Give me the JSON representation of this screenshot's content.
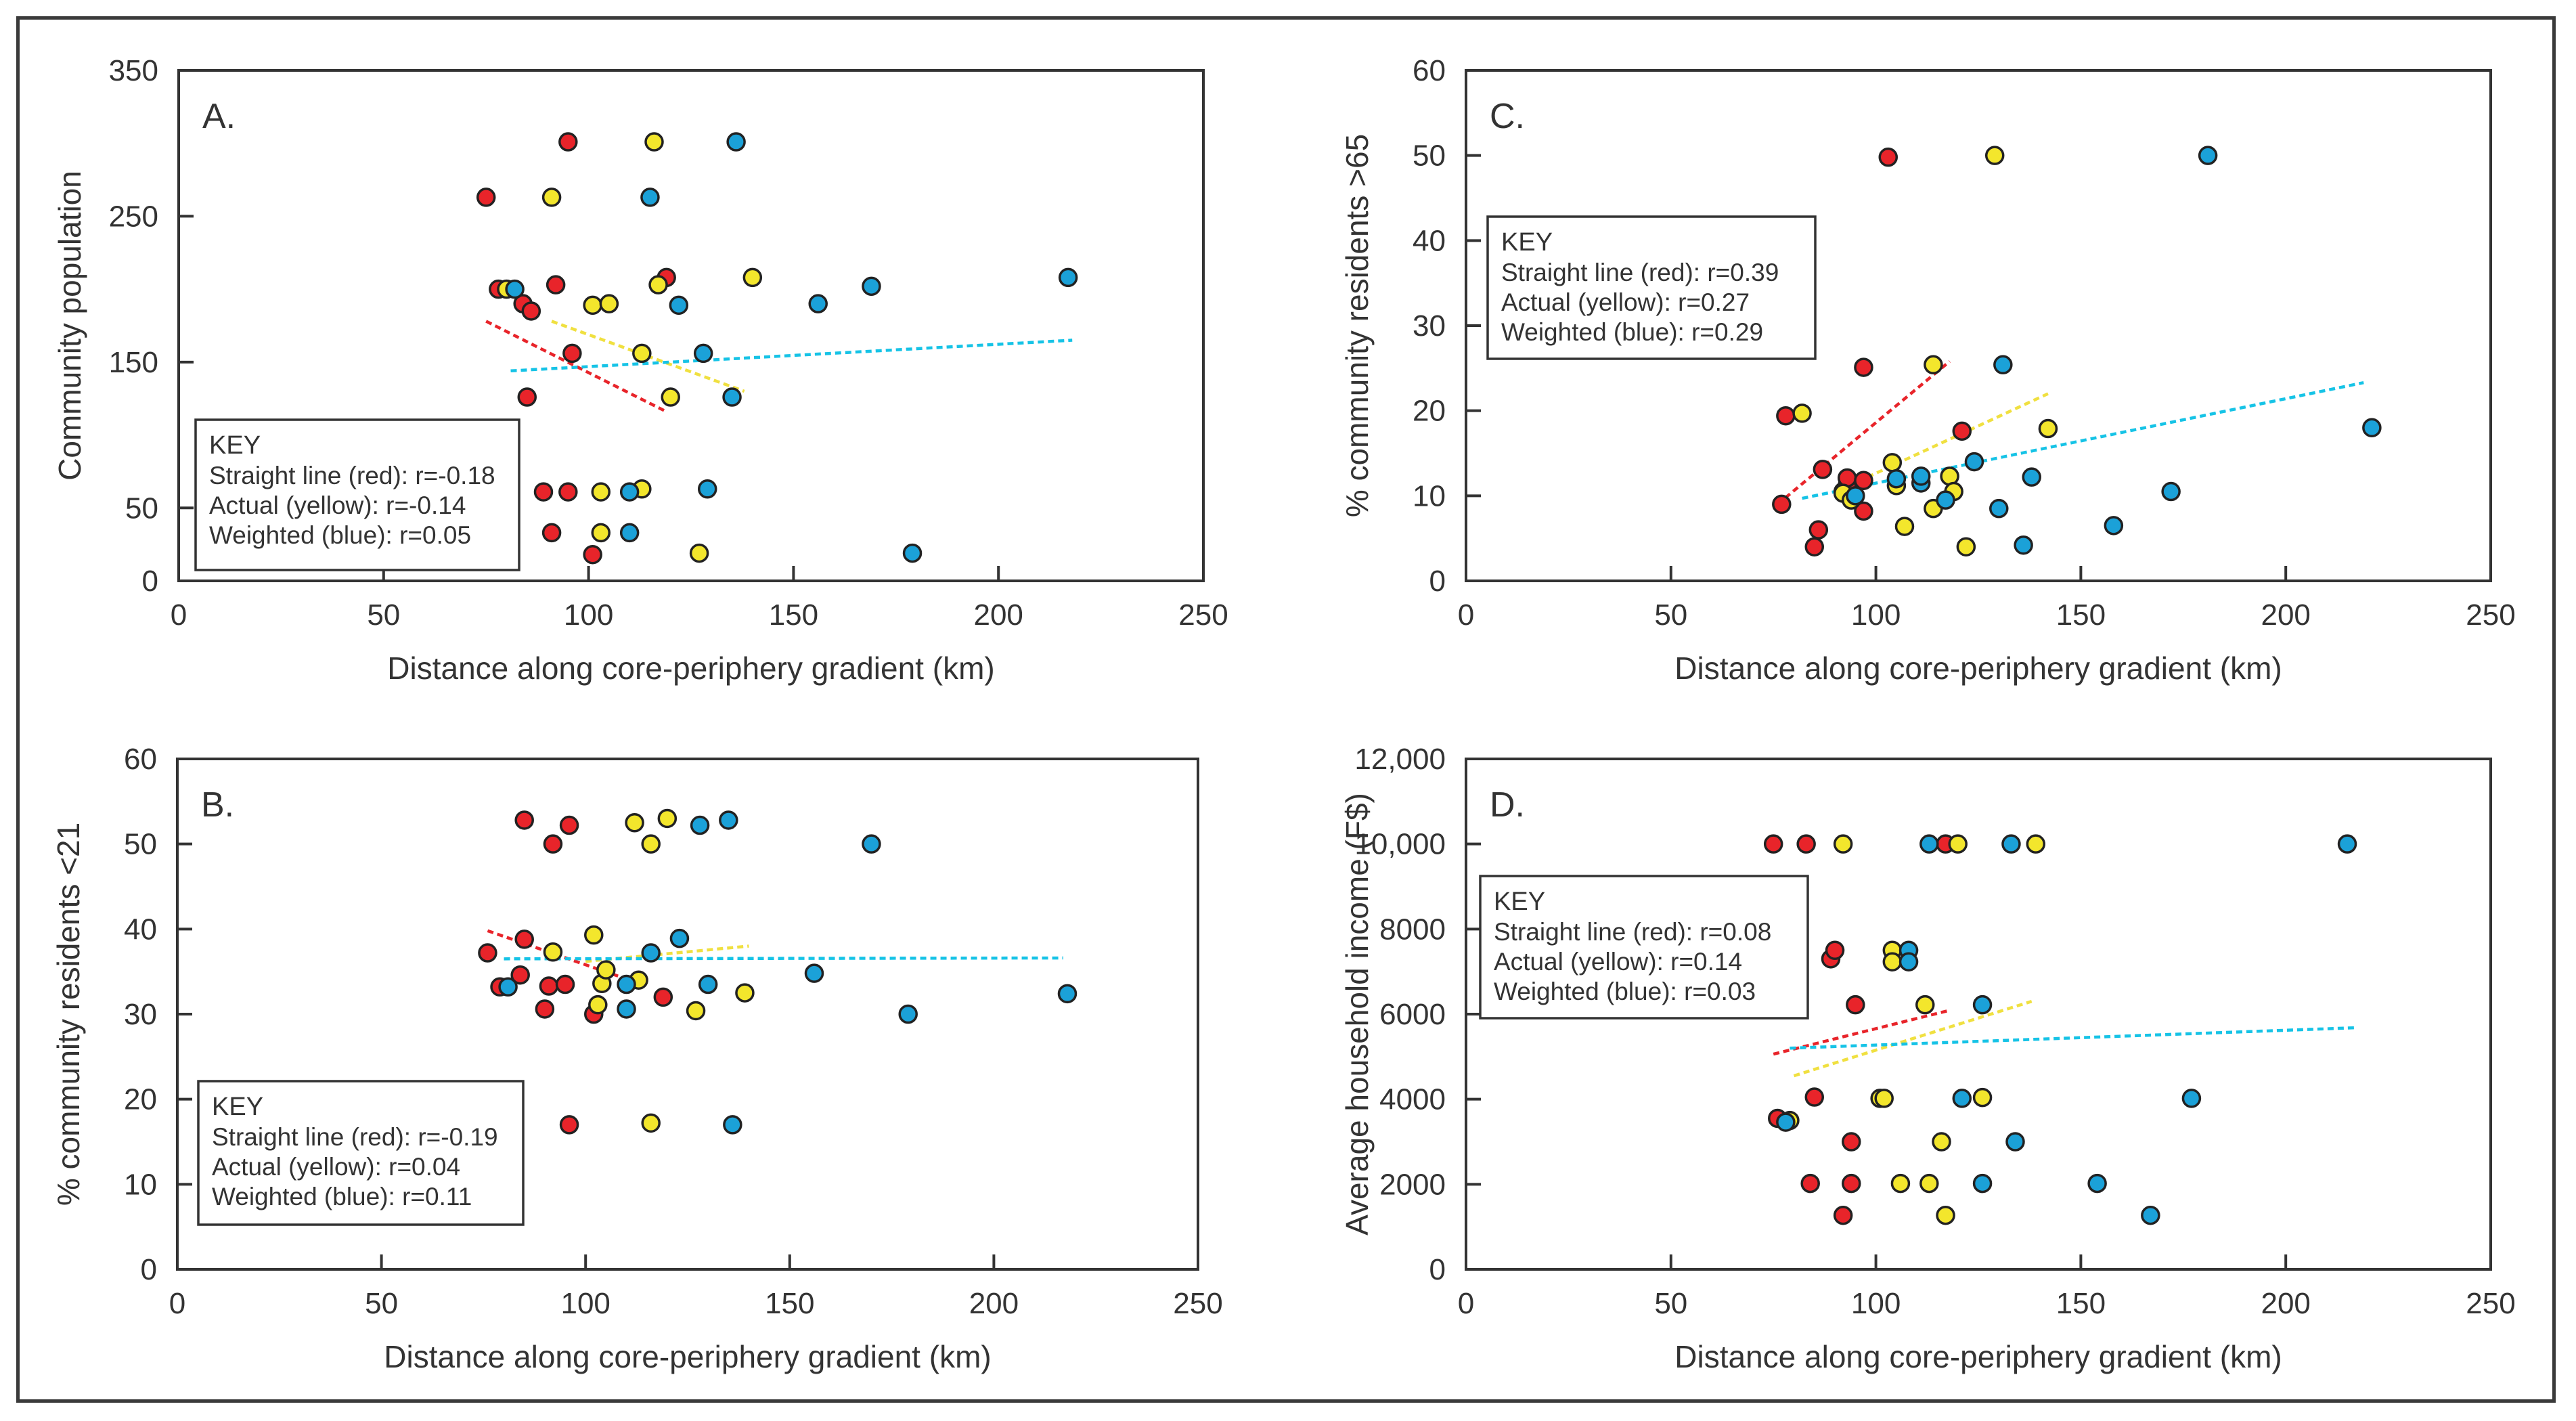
{
  "colors": {
    "red": "#e8242a",
    "yellow": "#f3e62c",
    "blue": "#1ba1d8",
    "red_line": "#e8242a",
    "yellow_line": "#f0e040",
    "blue_line": "#16c3e6",
    "axis": "#333333"
  },
  "key_title": "KEY",
  "chart_data": [
    {
      "panel": "A.",
      "type": "scatter",
      "xlabel": "Distance along core-periphery gradient (km)",
      "ylabel": "Community population",
      "xlim": [
        0,
        250
      ],
      "ylim": [
        0,
        350
      ],
      "xticks": [
        0,
        50,
        100,
        150,
        200,
        250
      ],
      "yticks": [
        0,
        50,
        150,
        250,
        350
      ],
      "key": [
        "Straight line (red): r=-0.18",
        "Actual (yellow): r=-0.14",
        "Weighted (blue): r=0.05"
      ],
      "series": [
        {
          "name": "Straight line",
          "color": "red",
          "points": [
            [
              75,
              263
            ],
            [
              78,
              200
            ],
            [
              84,
              190
            ],
            [
              85,
              126
            ],
            [
              86,
              185
            ],
            [
              89,
              61
            ],
            [
              91,
              33
            ],
            [
              92,
              203
            ],
            [
              95,
              301
            ],
            [
              95,
              61
            ],
            [
              96,
              156
            ],
            [
              101,
              18
            ],
            [
              119,
              208
            ]
          ],
          "trend": [
            [
              75,
              178
            ],
            [
              119,
              116
            ]
          ]
        },
        {
          "name": "Actual",
          "color": "yellow",
          "points": [
            [
              80,
              200
            ],
            [
              91,
              263
            ],
            [
              101,
              189
            ],
            [
              103,
              61
            ],
            [
              103,
              33
            ],
            [
              105,
              190
            ],
            [
              113,
              156
            ],
            [
              113,
              63
            ],
            [
              116,
              301
            ],
            [
              117,
              203
            ],
            [
              120,
              126
            ],
            [
              127,
              19
            ],
            [
              140,
              208
            ]
          ],
          "trend": [
            [
              91,
              178
            ],
            [
              138,
              130
            ]
          ]
        },
        {
          "name": "Weighted",
          "color": "blue",
          "points": [
            [
              82,
              200
            ],
            [
              110,
              61
            ],
            [
              110,
              33
            ],
            [
              115,
              263
            ],
            [
              122,
              189
            ],
            [
              128,
              156
            ],
            [
              129,
              63
            ],
            [
              135,
              126
            ],
            [
              136,
              301
            ],
            [
              156,
              190
            ],
            [
              169,
              202
            ],
            [
              179,
              19
            ],
            [
              217,
              208
            ]
          ],
          "trend": [
            [
              81,
              144
            ],
            [
              218,
              165
            ]
          ]
        }
      ]
    },
    {
      "panel": "B.",
      "type": "scatter",
      "xlabel": "Distance along core-periphery gradient (km)",
      "ylabel": "% community residents <21",
      "xlim": [
        0,
        250
      ],
      "ylim": [
        0,
        60
      ],
      "xticks": [
        0,
        50,
        100,
        150,
        200,
        250
      ],
      "yticks": [
        0,
        10,
        20,
        30,
        40,
        50,
        60
      ],
      "key": [
        "Straight line (red): r=-0.19",
        "Actual (yellow): r=0.04",
        "Weighted (blue): r=0.11"
      ],
      "series": [
        {
          "name": "Straight line",
          "color": "red",
          "points": [
            [
              76,
              37.2
            ],
            [
              79,
              33.2
            ],
            [
              84,
              34.6
            ],
            [
              85,
              38.8
            ],
            [
              85,
              52.8
            ],
            [
              90,
              30.6
            ],
            [
              91,
              33.3
            ],
            [
              92,
              50
            ],
            [
              95,
              33.5
            ],
            [
              96,
              52.2
            ],
            [
              96,
              17
            ],
            [
              102,
              30
            ],
            [
              119,
              32
            ]
          ],
          "trend": [
            [
              76,
              39.8
            ],
            [
              112,
              33.8
            ]
          ]
        },
        {
          "name": "Actual",
          "color": "yellow",
          "points": [
            [
              92,
              37.3
            ],
            [
              102,
              39.3
            ],
            [
              103,
              31.1
            ],
            [
              104,
              33.6
            ],
            [
              105,
              35.2
            ],
            [
              112,
              52.5
            ],
            [
              113,
              34
            ],
            [
              116,
              50
            ],
            [
              116,
              17.2
            ],
            [
              120,
              53
            ],
            [
              127,
              30.4
            ],
            [
              139,
              32.5
            ]
          ],
          "trend": [
            [
              100,
              36.2
            ],
            [
              140,
              38
            ]
          ]
        },
        {
          "name": "Weighted",
          "color": "blue",
          "points": [
            [
              81,
              33.2
            ],
            [
              110,
              33.5
            ],
            [
              110,
              30.6
            ],
            [
              116,
              37.2
            ],
            [
              123,
              38.9
            ],
            [
              128,
              52.2
            ],
            [
              130,
              33.5
            ],
            [
              135,
              52.8
            ],
            [
              136,
              17
            ],
            [
              156,
              34.8
            ],
            [
              170,
              50
            ],
            [
              179,
              30
            ],
            [
              218,
              32.4
            ]
          ],
          "trend": [
            [
              80,
              36.5
            ],
            [
              217,
              36.6
            ]
          ]
        }
      ]
    },
    {
      "panel": "C.",
      "type": "scatter",
      "xlabel": "Distance along core-periphery gradient (km)",
      "ylabel": "% community residents >65",
      "xlim": [
        0,
        250
      ],
      "ylim": [
        0,
        60
      ],
      "xticks": [
        0,
        50,
        100,
        150,
        200,
        250
      ],
      "yticks": [
        0,
        10,
        20,
        30,
        40,
        50,
        60
      ],
      "key": [
        "Straight line (red): r=0.39",
        "Actual (yellow): r=0.27",
        "Weighted (blue): r=0.29"
      ],
      "series": [
        {
          "name": "Straight line",
          "color": "red",
          "points": [
            [
              77,
              9
            ],
            [
              78,
              19.4
            ],
            [
              85,
              4
            ],
            [
              86,
              6
            ],
            [
              87,
              13.1
            ],
            [
              92,
              10.5
            ],
            [
              93,
              11.2
            ],
            [
              93,
              12.1
            ],
            [
              97,
              8.2
            ],
            [
              97,
              11.8
            ],
            [
              97,
              25.1
            ],
            [
              103,
              49.8
            ],
            [
              121,
              17.6
            ]
          ],
          "trend": [
            [
              76,
              9
            ],
            [
              118,
              25.8
            ]
          ]
        },
        {
          "name": "Actual",
          "color": "yellow",
          "points": [
            [
              82,
              19.7
            ],
            [
              92,
              10.3
            ],
            [
              94,
              9.5
            ],
            [
              104,
              13.9
            ],
            [
              105,
              11.2
            ],
            [
              107,
              6.4
            ],
            [
              114,
              8.5
            ],
            [
              114,
              25.4
            ],
            [
              118,
              12.3
            ],
            [
              119,
              10.5
            ],
            [
              122,
              4
            ],
            [
              129,
              50
            ],
            [
              142,
              17.9
            ]
          ],
          "trend": [
            [
              98,
              12.2
            ],
            [
              142,
              22
            ]
          ]
        },
        {
          "name": "Weighted",
          "color": "blue",
          "points": [
            [
              95,
              10
            ],
            [
              105,
              12
            ],
            [
              111,
              11.5
            ],
            [
              111,
              12.3
            ],
            [
              117,
              9.5
            ],
            [
              124,
              14
            ],
            [
              130,
              8.5
            ],
            [
              131,
              25.4
            ],
            [
              136,
              4.2
            ],
            [
              138,
              12.2
            ],
            [
              158,
              6.5
            ],
            [
              172,
              10.5
            ],
            [
              181,
              50
            ],
            [
              221,
              18
            ]
          ],
          "trend": [
            [
              82,
              9.7
            ],
            [
              219,
              23.3
            ]
          ]
        }
      ]
    },
    {
      "panel": "D.",
      "type": "scatter",
      "xlabel": "Distance along core-periphery gradient (km)",
      "ylabel": "Average household income (F$)",
      "xlim": [
        0,
        250
      ],
      "ylim": [
        0,
        12000
      ],
      "xticks": [
        0,
        50,
        100,
        150,
        200,
        250
      ],
      "yticks": [
        0,
        2000,
        4000,
        6000,
        8000,
        10000,
        12000
      ],
      "ytick_labels": [
        "0",
        "2000",
        "4000",
        "6000",
        "8000",
        "10,000",
        "12,000"
      ],
      "key": [
        "Straight line (red): r=0.08",
        "Actual (yellow): r=0.14",
        "Weighted (blue): r=0.03"
      ],
      "series": [
        {
          "name": "Straight line",
          "color": "red",
          "points": [
            [
              75,
              10000
            ],
            [
              76,
              3550
            ],
            [
              83,
              10000
            ],
            [
              84,
              2020
            ],
            [
              85,
              4050
            ],
            [
              89,
              7300
            ],
            [
              90,
              7500
            ],
            [
              92,
              1270
            ],
            [
              94,
              3000
            ],
            [
              94,
              2020
            ],
            [
              95,
              6220
            ],
            [
              117,
              10000
            ]
          ],
          "trend": [
            [
              75,
              5060
            ],
            [
              118,
              6090
            ]
          ]
        },
        {
          "name": "Actual",
          "color": "yellow",
          "points": [
            [
              79,
              3500
            ],
            [
              92,
              10000
            ],
            [
              101,
              4020
            ],
            [
              102,
              4020
            ],
            [
              104,
              7500
            ],
            [
              104,
              7230
            ],
            [
              106,
              2020
            ],
            [
              112,
              6220
            ],
            [
              113,
              2020
            ],
            [
              116,
              3000
            ],
            [
              117,
              1270
            ],
            [
              120,
              10000
            ],
            [
              126,
              4040
            ],
            [
              139,
              10000
            ]
          ],
          "trend": [
            [
              80,
              4550
            ],
            [
              138,
              6300
            ]
          ]
        },
        {
          "name": "Weighted",
          "color": "blue",
          "points": [
            [
              78,
              3460
            ],
            [
              113,
              10000
            ],
            [
              108,
              7500
            ],
            [
              108,
              7230
            ],
            [
              121,
              4020
            ],
            [
              126,
              6220
            ],
            [
              126,
              2020
            ],
            [
              133,
              10000
            ],
            [
              134,
              3000
            ],
            [
              154,
              2020
            ],
            [
              167,
              1270
            ],
            [
              177,
              4020
            ],
            [
              215,
              10000
            ]
          ],
          "trend": [
            [
              79,
              5200
            ],
            [
              217,
              5680
            ]
          ]
        }
      ]
    }
  ]
}
